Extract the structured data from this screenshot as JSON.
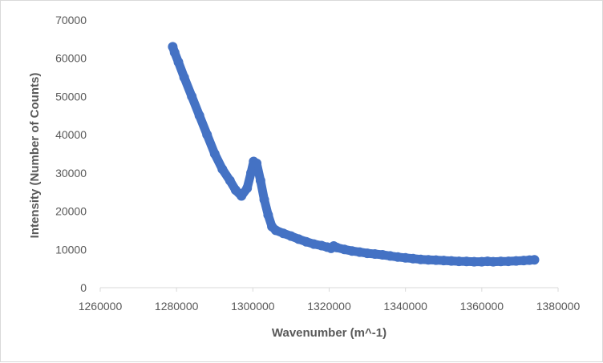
{
  "chart_data": {
    "type": "scatter",
    "title": "",
    "xlabel": "Wavenumber (m^-1)",
    "ylabel": "Intensity (Number of Counts)",
    "xlim": [
      1260000,
      1380000
    ],
    "ylim": [
      0,
      70000
    ],
    "x_ticks": [
      1260000,
      1280000,
      1300000,
      1320000,
      1340000,
      1360000,
      1380000
    ],
    "y_ticks": [
      0,
      10000,
      20000,
      30000,
      40000,
      50000,
      60000,
      70000
    ],
    "x_tick_labels": [
      "1260000",
      "1280000",
      "1300000",
      "1320000",
      "1340000",
      "1360000",
      "1380000"
    ],
    "y_tick_labels": [
      "0",
      "10000",
      "20000",
      "30000",
      "40000",
      "50000",
      "60000",
      "70000"
    ],
    "grid": false,
    "legend": "none",
    "marker_color": "#4472C4",
    "series": [
      {
        "x": [
          1279000,
          1279500,
          1280500,
          1282000,
          1284000,
          1286000,
          1288000,
          1290000,
          1292000,
          1294000,
          1295500,
          1297000,
          1298500,
          1299500,
          1300200,
          1301000,
          1302000,
          1303000,
          1304000,
          1305000,
          1306000,
          1308000,
          1310000,
          1312000,
          1314000,
          1316000,
          1318000,
          1319500,
          1320500,
          1321200,
          1322000,
          1324000,
          1326000,
          1328000,
          1330000,
          1332000,
          1334000,
          1336000,
          1338000,
          1340000,
          1342000,
          1344000,
          1346000,
          1348000,
          1350000,
          1352000,
          1354000,
          1356000,
          1358000,
          1360000,
          1361500,
          1363000,
          1365000,
          1367000,
          1369000,
          1371000,
          1372500,
          1373800
        ],
        "y": [
          63000,
          61500,
          59000,
          55000,
          50000,
          45000,
          40000,
          35000,
          31000,
          28000,
          25500,
          24000,
          26000,
          30000,
          33000,
          32500,
          28000,
          23000,
          19000,
          16000,
          15000,
          14200,
          13500,
          12700,
          12000,
          11400,
          11000,
          10600,
          10300,
          10900,
          10500,
          10000,
          9600,
          9300,
          9000,
          8800,
          8600,
          8300,
          8000,
          7800,
          7600,
          7400,
          7300,
          7200,
          7100,
          7000,
          6900,
          6850,
          6800,
          6800,
          6900,
          6800,
          6850,
          6900,
          7000,
          7100,
          7200,
          7300
        ]
      }
    ]
  }
}
